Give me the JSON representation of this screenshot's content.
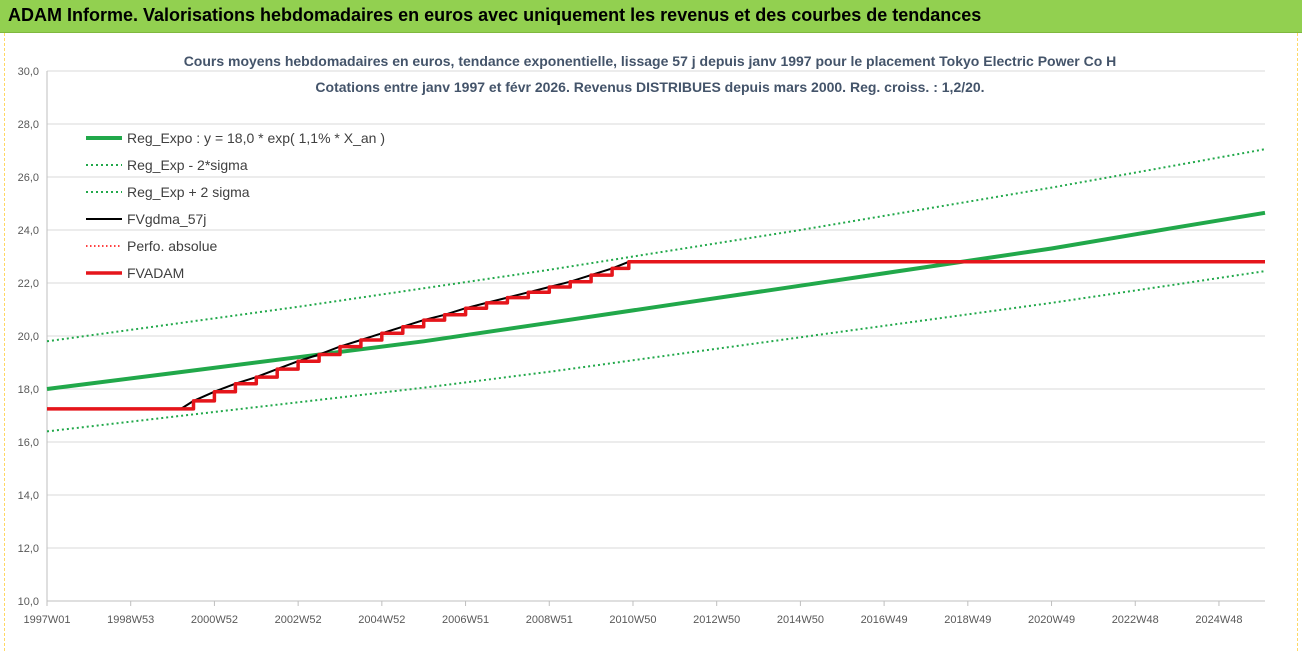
{
  "header": {
    "title": "ADAM Informe. Valorisations hebdomadaires en euros avec uniquement les revenus et des courbes de tendances"
  },
  "colors": {
    "banner": "#92d050",
    "trend": "#21a84a",
    "fvgdma": "#000000",
    "perfo": "#ff0000",
    "fvadam": "#e5151b",
    "grid": "#d9d9d9"
  },
  "chart_data": {
    "type": "line",
    "title": "Cours moyens hebdomadaires en euros, tendance exponentielle, lissage 57 j depuis janv 1997 pour le placement Tokyo Electric Power Co H",
    "subtitle": "Cotations entre janv 1997 et févr 2026. Revenus DISTRIBUES depuis mars 2000. Reg. croiss. : 1,2/20.",
    "xlabel": "",
    "ylabel": "",
    "ylim": [
      10,
      30
    ],
    "yticks": [
      "10,0",
      "12,0",
      "14,0",
      "16,0",
      "18,0",
      "20,0",
      "22,0",
      "24,0",
      "26,0",
      "28,0",
      "30,0"
    ],
    "xlim": [
      1997.0,
      2026.1
    ],
    "xticks": [
      {
        "label": "1997W01",
        "x": 1997.0
      },
      {
        "label": "1998W53",
        "x": 1999.0
      },
      {
        "label": "2000W52",
        "x": 2001.0
      },
      {
        "label": "2002W52",
        "x": 2003.0
      },
      {
        "label": "2004W52",
        "x": 2005.0
      },
      {
        "label": "2006W51",
        "x": 2007.0
      },
      {
        "label": "2008W51",
        "x": 2009.0
      },
      {
        "label": "2010W50",
        "x": 2011.0
      },
      {
        "label": "2012W50",
        "x": 2013.0
      },
      {
        "label": "2014W50",
        "x": 2015.0
      },
      {
        "label": "2016W49",
        "x": 2017.0
      },
      {
        "label": "2018W49",
        "x": 2019.0
      },
      {
        "label": "2020W49",
        "x": 2021.0
      },
      {
        "label": "2022W48",
        "x": 2023.0
      },
      {
        "label": "2024W48",
        "x": 2025.0
      }
    ],
    "grid": "horizontal",
    "legend_position": "top-left",
    "series": [
      {
        "name": "Reg_Expo : y = 18,0 * exp( 1,1% *  X_an )",
        "color": "#21a84a",
        "style": "solid",
        "width": 4,
        "x": [
          1997.0,
          2000.0,
          2003.0,
          2006.0,
          2009.0,
          2012.0,
          2015.0,
          2018.0,
          2021.0,
          2024.0,
          2026.1
        ],
        "y": [
          18.0,
          18.6,
          19.2,
          19.8,
          20.5,
          21.2,
          21.9,
          22.6,
          23.3,
          24.1,
          24.65
        ]
      },
      {
        "name": "Reg_Exp - 2*sigma",
        "color": "#21a84a",
        "style": "dotted",
        "width": 2,
        "x": [
          1997.0,
          2000.0,
          2003.0,
          2006.0,
          2009.0,
          2012.0,
          2015.0,
          2018.0,
          2021.0,
          2024.0,
          2026.1
        ],
        "y": [
          16.4,
          16.95,
          17.5,
          18.05,
          18.65,
          19.3,
          19.95,
          20.6,
          21.25,
          21.95,
          22.45
        ]
      },
      {
        "name": "Reg_Exp + 2 sigma",
        "color": "#21a84a",
        "style": "dotted",
        "width": 2,
        "x": [
          1997.0,
          2000.0,
          2003.0,
          2006.0,
          2009.0,
          2012.0,
          2015.0,
          2018.0,
          2021.0,
          2024.0,
          2026.1
        ],
        "y": [
          19.8,
          20.45,
          21.1,
          21.8,
          22.5,
          23.25,
          24.0,
          24.8,
          25.6,
          26.45,
          27.05
        ]
      },
      {
        "name": "FVgdma_57j",
        "color": "#000000",
        "style": "solid",
        "width": 2,
        "x": [
          2000.2,
          2000.5,
          2001.0,
          2001.5,
          2002.0,
          2002.5,
          2003.0,
          2003.5,
          2004.0,
          2004.5,
          2005.0,
          2005.5,
          2006.0,
          2006.5,
          2007.0,
          2007.5,
          2008.0,
          2008.5,
          2009.0,
          2009.5,
          2010.0,
          2010.5,
          2010.9
        ],
        "y": [
          17.25,
          17.55,
          17.9,
          18.2,
          18.45,
          18.75,
          19.05,
          19.3,
          19.6,
          19.85,
          20.1,
          20.35,
          20.6,
          20.8,
          21.05,
          21.25,
          21.45,
          21.65,
          21.85,
          22.05,
          22.3,
          22.55,
          22.8
        ]
      },
      {
        "name": "Perfo. absolue",
        "color": "#ff0000",
        "style": "dotted",
        "width": 1.5,
        "x": [
          1997.0,
          2000.2,
          2000.5,
          2001.0,
          2001.5,
          2002.0,
          2002.5,
          2003.0,
          2003.5,
          2004.0,
          2004.5,
          2005.0,
          2005.5,
          2006.0,
          2006.5,
          2007.0,
          2007.5,
          2008.0,
          2008.5,
          2009.0,
          2009.5,
          2010.0,
          2010.5,
          2010.9,
          2026.1
        ],
        "y": [
          17.25,
          17.25,
          17.55,
          17.9,
          18.2,
          18.45,
          18.75,
          19.05,
          19.3,
          19.6,
          19.85,
          20.1,
          20.35,
          20.6,
          20.8,
          21.05,
          21.25,
          21.45,
          21.65,
          21.85,
          22.05,
          22.3,
          22.55,
          22.8,
          22.8
        ]
      },
      {
        "name": "FVADAM",
        "color": "#e5151b",
        "style": "step",
        "width": 3.5,
        "x": [
          1997.0,
          2000.2,
          2000.5,
          2001.0,
          2001.5,
          2002.0,
          2002.5,
          2003.0,
          2003.5,
          2004.0,
          2004.5,
          2005.0,
          2005.5,
          2006.0,
          2006.5,
          2007.0,
          2007.5,
          2008.0,
          2008.5,
          2009.0,
          2009.5,
          2010.0,
          2010.5,
          2010.9,
          2026.1
        ],
        "y": [
          17.25,
          17.25,
          17.55,
          17.9,
          18.2,
          18.45,
          18.75,
          19.05,
          19.3,
          19.6,
          19.85,
          20.1,
          20.35,
          20.6,
          20.8,
          21.05,
          21.25,
          21.45,
          21.65,
          21.85,
          22.05,
          22.3,
          22.55,
          22.8,
          22.8
        ]
      }
    ]
  }
}
